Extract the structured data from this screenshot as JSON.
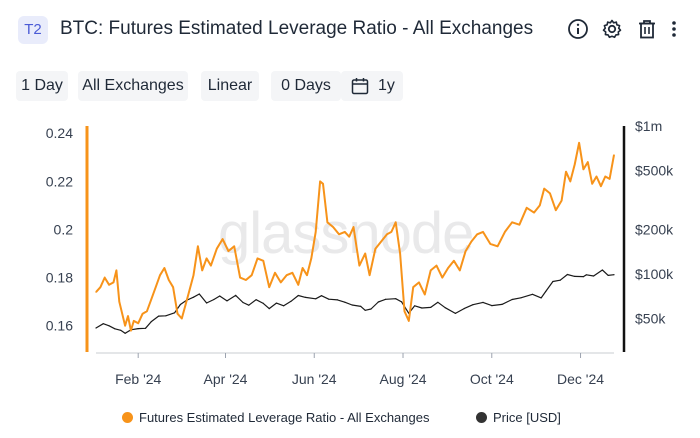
{
  "header": {
    "tag": "T2",
    "title": "BTC: Futures Estimated Leverage Ratio - All Exchanges",
    "icons": [
      "info-icon",
      "gear-icon",
      "trash-icon",
      "more-vertical-icon"
    ]
  },
  "controls": {
    "resolution": "1 Day",
    "exchange": "All Exchanges",
    "scale": "Linear",
    "sma": "0 Days",
    "range": "1y"
  },
  "watermark": "glassnode",
  "colors": {
    "leverage": "#f7931a",
    "price": "#1a1a1a",
    "left_axis": "#f7931a",
    "right_axis": "#111111"
  },
  "chart_data": {
    "type": "line",
    "x_ticks": [
      "Feb '24",
      "Apr '24",
      "Jun '24",
      "Aug '24",
      "Oct '24",
      "Dec '24"
    ],
    "y_left": {
      "ticks": [
        "0.24",
        "0.22",
        "0.2",
        "0.18",
        "0.16"
      ],
      "range": [
        0.152,
        0.243
      ]
    },
    "y_right": {
      "scale": "log",
      "ticks": [
        "$1m",
        "$500k",
        "$200k",
        "$100k",
        "$50k"
      ],
      "range": [
        33000,
        1000000
      ]
    },
    "x_range": [
      "2024-01-03",
      "2024-12-24"
    ],
    "series": [
      {
        "name": "Futures Estimated Leverage Ratio - All Exchanges",
        "axis": "left",
        "points": [
          [
            "2024-01-03",
            0.174
          ],
          [
            "2024-01-06",
            0.176
          ],
          [
            "2024-01-09",
            0.18
          ],
          [
            "2024-01-12",
            0.177
          ],
          [
            "2024-01-15",
            0.178
          ],
          [
            "2024-01-17",
            0.183
          ],
          [
            "2024-01-19",
            0.17
          ],
          [
            "2024-01-21",
            0.165
          ],
          [
            "2024-01-23",
            0.16
          ],
          [
            "2024-01-25",
            0.164
          ],
          [
            "2024-01-27",
            0.158
          ],
          [
            "2024-01-29",
            0.162
          ],
          [
            "2024-02-01",
            0.161
          ],
          [
            "2024-02-04",
            0.165
          ],
          [
            "2024-02-07",
            0.166
          ],
          [
            "2024-02-10",
            0.171
          ],
          [
            "2024-02-13",
            0.176
          ],
          [
            "2024-02-16",
            0.181
          ],
          [
            "2024-02-19",
            0.184
          ],
          [
            "2024-02-22",
            0.179
          ],
          [
            "2024-02-25",
            0.176
          ],
          [
            "2024-02-28",
            0.165
          ],
          [
            "2024-03-02",
            0.163
          ],
          [
            "2024-03-06",
            0.172
          ],
          [
            "2024-03-10",
            0.181
          ],
          [
            "2024-03-13",
            0.193
          ],
          [
            "2024-03-16",
            0.183
          ],
          [
            "2024-03-19",
            0.188
          ],
          [
            "2024-03-22",
            0.185
          ],
          [
            "2024-03-26",
            0.192
          ],
          [
            "2024-03-30",
            0.196
          ],
          [
            "2024-04-03",
            0.191
          ],
          [
            "2024-04-07",
            0.193
          ],
          [
            "2024-04-11",
            0.18
          ],
          [
            "2024-04-15",
            0.179
          ],
          [
            "2024-04-19",
            0.181
          ],
          [
            "2024-04-23",
            0.188
          ],
          [
            "2024-04-27",
            0.187
          ],
          [
            "2024-05-01",
            0.176
          ],
          [
            "2024-05-05",
            0.182
          ],
          [
            "2024-05-09",
            0.178
          ],
          [
            "2024-05-13",
            0.181
          ],
          [
            "2024-05-17",
            0.182
          ],
          [
            "2024-05-21",
            0.177
          ],
          [
            "2024-05-24",
            0.184
          ],
          [
            "2024-05-27",
            0.181
          ],
          [
            "2024-05-30",
            0.188
          ],
          [
            "2024-06-02",
            0.199
          ],
          [
            "2024-06-05",
            0.22
          ],
          [
            "2024-06-07",
            0.219
          ],
          [
            "2024-06-10",
            0.203
          ],
          [
            "2024-06-14",
            0.201
          ],
          [
            "2024-06-18",
            0.198
          ],
          [
            "2024-06-22",
            0.199
          ],
          [
            "2024-06-25",
            0.197
          ],
          [
            "2024-06-28",
            0.201
          ],
          [
            "2024-07-02",
            0.185
          ],
          [
            "2024-07-06",
            0.19
          ],
          [
            "2024-07-09",
            0.181
          ],
          [
            "2024-07-13",
            0.192
          ],
          [
            "2024-07-17",
            0.195
          ],
          [
            "2024-07-21",
            0.198
          ],
          [
            "2024-07-24",
            0.199
          ],
          [
            "2024-07-27",
            0.203
          ],
          [
            "2024-07-30",
            0.19
          ],
          [
            "2024-08-02",
            0.166
          ],
          [
            "2024-08-05",
            0.162
          ],
          [
            "2024-08-08",
            0.176
          ],
          [
            "2024-08-12",
            0.178
          ],
          [
            "2024-08-16",
            0.173
          ],
          [
            "2024-08-20",
            0.183
          ],
          [
            "2024-08-24",
            0.185
          ],
          [
            "2024-08-28",
            0.18
          ],
          [
            "2024-09-01",
            0.184
          ],
          [
            "2024-09-05",
            0.187
          ],
          [
            "2024-09-09",
            0.183
          ],
          [
            "2024-09-13",
            0.191
          ],
          [
            "2024-09-17",
            0.195
          ],
          [
            "2024-09-21",
            0.198
          ],
          [
            "2024-09-25",
            0.199
          ],
          [
            "2024-09-30",
            0.194
          ],
          [
            "2024-10-05",
            0.193
          ],
          [
            "2024-10-10",
            0.199
          ],
          [
            "2024-10-15",
            0.203
          ],
          [
            "2024-10-20",
            0.202
          ],
          [
            "2024-10-25",
            0.209
          ],
          [
            "2024-10-30",
            0.207
          ],
          [
            "2024-11-03",
            0.21
          ],
          [
            "2024-11-06",
            0.217
          ],
          [
            "2024-11-10",
            0.215
          ],
          [
            "2024-11-14",
            0.208
          ],
          [
            "2024-11-18",
            0.212
          ],
          [
            "2024-11-21",
            0.224
          ],
          [
            "2024-11-24",
            0.22
          ],
          [
            "2024-11-27",
            0.227
          ],
          [
            "2024-11-30",
            0.236
          ],
          [
            "2024-12-03",
            0.225
          ],
          [
            "2024-12-06",
            0.228
          ],
          [
            "2024-12-09",
            0.219
          ],
          [
            "2024-12-12",
            0.222
          ],
          [
            "2024-12-15",
            0.218
          ],
          [
            "2024-12-18",
            0.222
          ],
          [
            "2024-12-21",
            0.221
          ],
          [
            "2024-12-24",
            0.231
          ]
        ]
      },
      {
        "name": "Price [USD]",
        "axis": "right",
        "points": [
          [
            "2024-01-03",
            43000
          ],
          [
            "2024-01-08",
            46000
          ],
          [
            "2024-01-12",
            44500
          ],
          [
            "2024-01-16",
            42500
          ],
          [
            "2024-01-20",
            41500
          ],
          [
            "2024-01-23",
            39600
          ],
          [
            "2024-01-27",
            41800
          ],
          [
            "2024-02-01",
            42600
          ],
          [
            "2024-02-06",
            42800
          ],
          [
            "2024-02-10",
            47500
          ],
          [
            "2024-02-15",
            51800
          ],
          [
            "2024-02-20",
            52000
          ],
          [
            "2024-02-26",
            54500
          ],
          [
            "2024-03-01",
            62000
          ],
          [
            "2024-03-05",
            66000
          ],
          [
            "2024-03-10",
            69500
          ],
          [
            "2024-03-14",
            73000
          ],
          [
            "2024-03-19",
            63500
          ],
          [
            "2024-03-24",
            67000
          ],
          [
            "2024-03-28",
            70800
          ],
          [
            "2024-04-02",
            65600
          ],
          [
            "2024-04-08",
            71500
          ],
          [
            "2024-04-13",
            64000
          ],
          [
            "2024-04-17",
            61300
          ],
          [
            "2024-04-22",
            66800
          ],
          [
            "2024-04-27",
            63100
          ],
          [
            "2024-05-01",
            58200
          ],
          [
            "2024-05-06",
            63400
          ],
          [
            "2024-05-11",
            60800
          ],
          [
            "2024-05-16",
            65200
          ],
          [
            "2024-05-21",
            71300
          ],
          [
            "2024-05-26",
            69300
          ],
          [
            "2024-06-02",
            67800
          ],
          [
            "2024-06-06",
            71100
          ],
          [
            "2024-06-11",
            67300
          ],
          [
            "2024-06-17",
            66600
          ],
          [
            "2024-06-22",
            64300
          ],
          [
            "2024-06-27",
            61500
          ],
          [
            "2024-07-03",
            60200
          ],
          [
            "2024-07-06",
            56700
          ],
          [
            "2024-07-10",
            57800
          ],
          [
            "2024-07-15",
            64500
          ],
          [
            "2024-07-20",
            67200
          ],
          [
            "2024-07-27",
            67900
          ],
          [
            "2024-07-31",
            64600
          ],
          [
            "2024-08-05",
            54100
          ],
          [
            "2024-08-09",
            60800
          ],
          [
            "2024-08-14",
            58700
          ],
          [
            "2024-08-20",
            59300
          ],
          [
            "2024-08-25",
            64200
          ],
          [
            "2024-08-30",
            59000
          ],
          [
            "2024-09-06",
            54000
          ],
          [
            "2024-09-12",
            58200
          ],
          [
            "2024-09-18",
            61800
          ],
          [
            "2024-09-25",
            64100
          ],
          [
            "2024-10-01",
            61000
          ],
          [
            "2024-10-08",
            62100
          ],
          [
            "2024-10-15",
            67000
          ],
          [
            "2024-10-21",
            68800
          ],
          [
            "2024-10-29",
            72700
          ],
          [
            "2024-11-04",
            68700
          ],
          [
            "2024-11-07",
            75800
          ],
          [
            "2024-11-12",
            88700
          ],
          [
            "2024-11-17",
            90500
          ],
          [
            "2024-11-22",
            98900
          ],
          [
            "2024-11-27",
            96000
          ],
          [
            "2024-12-03",
            95800
          ],
          [
            "2024-12-05",
            98500
          ],
          [
            "2024-12-10",
            96600
          ],
          [
            "2024-12-16",
            106100
          ],
          [
            "2024-12-20",
            97500
          ],
          [
            "2024-12-24",
            98700
          ]
        ]
      }
    ],
    "legend_position": "bottom-center",
    "grid": false
  }
}
